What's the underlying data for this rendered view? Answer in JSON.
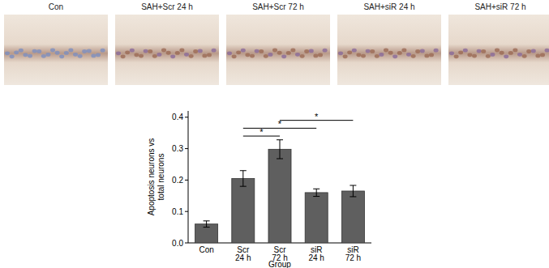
{
  "panels": [
    {
      "label": "Con"
    },
    {
      "label": "SAH+Scr 24 h"
    },
    {
      "label": "SAH+Scr 72 h"
    },
    {
      "label": "SAH+siR 24 h"
    },
    {
      "label": "SAH+siR 72 h"
    }
  ],
  "chart_data": {
    "type": "bar",
    "categories": [
      "Con",
      "Scr 24 h",
      "Scr 72 h",
      "siR 24 h",
      "siR 72 h"
    ],
    "values": [
      0.06,
      0.205,
      0.298,
      0.16,
      0.165
    ],
    "errors": [
      0.01,
      0.025,
      0.03,
      0.012,
      0.018
    ],
    "color": "#5f5f5f",
    "x_label": "Group",
    "y_label": "Apoptosis neurons vs total neurons",
    "ylim": [
      0,
      0.42
    ],
    "yticks": [
      {
        "value": 0,
        "label": "0.0"
      },
      0.1,
      0.2,
      0.3,
      0.4
    ],
    "significance": [
      {
        "from": "Scr 24 h",
        "to": "Scr 72 h",
        "y": 0.34,
        "label": "*"
      },
      {
        "from": "Scr 24 h",
        "to": "siR 24 h",
        "y": 0.365,
        "label": "*"
      },
      {
        "from": "Scr 72 h",
        "to": "siR 72 h",
        "y": 0.39,
        "label": "*"
      }
    ]
  }
}
